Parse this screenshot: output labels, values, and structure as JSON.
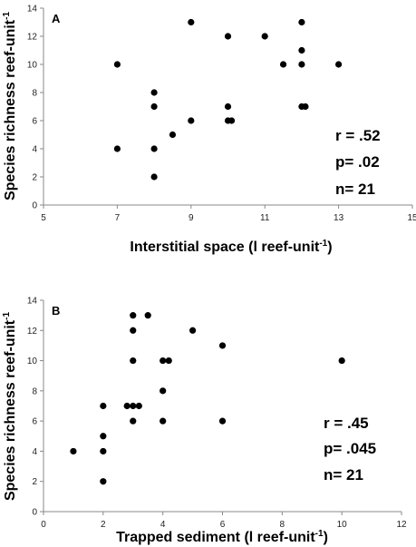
{
  "chart_data": [
    {
      "type": "scatter",
      "panel": "A",
      "xlabel": "Interstitial space (l reef-unit",
      "xlabel_sup": "-1",
      "xlabel_tail": ")",
      "ylabel": "Species richness reef-unit",
      "ylabel_sup": "-1",
      "xlim": [
        5,
        15
      ],
      "ylim": [
        0,
        14
      ],
      "xticks": [
        5,
        7,
        9,
        11,
        13,
        15
      ],
      "yticks": [
        0,
        2,
        4,
        6,
        8,
        10,
        12,
        14
      ],
      "points": [
        [
          7,
          10
        ],
        [
          7,
          4
        ],
        [
          8,
          8
        ],
        [
          8,
          7
        ],
        [
          8,
          4
        ],
        [
          8,
          2
        ],
        [
          8.5,
          5
        ],
        [
          9,
          13
        ],
        [
          9,
          6
        ],
        [
          10,
          12
        ],
        [
          10,
          7
        ],
        [
          10,
          6
        ],
        [
          10.1,
          6
        ],
        [
          11,
          12
        ],
        [
          11.5,
          10
        ],
        [
          12,
          13
        ],
        [
          12,
          11
        ],
        [
          12,
          10
        ],
        [
          12,
          7
        ],
        [
          12.1,
          7
        ],
        [
          13,
          10
        ]
      ],
      "stats": [
        "r = .52",
        "p= .02",
        "n= 21"
      ]
    },
    {
      "type": "scatter",
      "panel": "B",
      "xlabel": "Trapped sediment (l reef-unit",
      "xlabel_sup": "-1",
      "xlabel_tail": ")",
      "ylabel": "Species richness reef-unit",
      "ylabel_sup": "-1",
      "xlim": [
        0,
        12
      ],
      "ylim": [
        0,
        14
      ],
      "xticks": [
        0,
        2,
        4,
        6,
        8,
        10,
        12
      ],
      "yticks": [
        0,
        2,
        4,
        6,
        8,
        10,
        12,
        14
      ],
      "points": [
        [
          1,
          4
        ],
        [
          2,
          7
        ],
        [
          2,
          5
        ],
        [
          2,
          4
        ],
        [
          2,
          2
        ],
        [
          3,
          13
        ],
        [
          3,
          12
        ],
        [
          3,
          10
        ],
        [
          3,
          7
        ],
        [
          3,
          6
        ],
        [
          2.8,
          7
        ],
        [
          3.2,
          7
        ],
        [
          3.5,
          13
        ],
        [
          4,
          10
        ],
        [
          4.2,
          10
        ],
        [
          4,
          8
        ],
        [
          4,
          6
        ],
        [
          5,
          12
        ],
        [
          6,
          11
        ],
        [
          6,
          6
        ],
        [
          10,
          10
        ]
      ],
      "stats": [
        "r = .45",
        "p= .045",
        "n= 21"
      ]
    }
  ]
}
